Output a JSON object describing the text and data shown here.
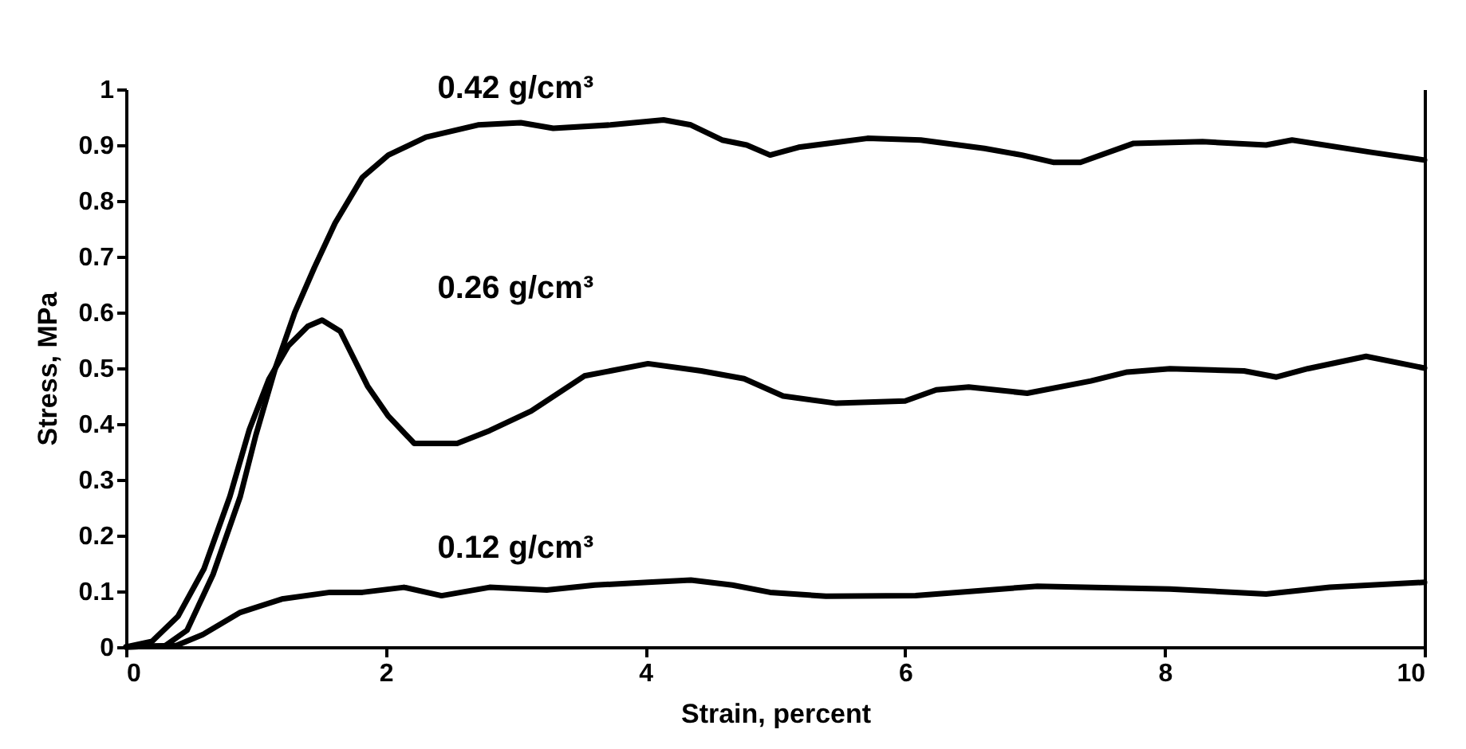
{
  "chart_data": {
    "type": "line",
    "xlabel": "Strain, percent",
    "ylabel": "Stress, MPa",
    "xlim": [
      0,
      10
    ],
    "xticks": [
      0,
      2,
      4,
      6,
      8,
      10
    ],
    "ylim": [
      0,
      1
    ],
    "yticks": [
      0,
      0.1,
      0.2,
      0.3,
      0.4,
      0.5,
      0.6,
      0.7,
      0.8,
      0.9,
      1
    ],
    "grid": false,
    "legend": false,
    "series": [
      {
        "name": "0.42 g/cm³",
        "color": "#000000",
        "x": [
          0,
          0.3,
          0.47,
          0.67,
          0.88,
          1.0,
          1.15,
          1.3,
          1.45,
          1.61,
          1.82,
          2.02,
          2.31,
          2.71,
          3.04,
          3.29,
          3.73,
          4.14,
          4.35,
          4.59,
          4.78,
          4.96,
          5.18,
          5.71,
          6.12,
          6.61,
          6.9,
          7.14,
          7.35,
          7.76,
          8.29,
          8.78,
          8.98,
          9.59,
          10
        ],
        "values": [
          0,
          0.002,
          0.03,
          0.13,
          0.27,
          0.38,
          0.5,
          0.6,
          0.68,
          0.76,
          0.842,
          0.882,
          0.914,
          0.936,
          0.94,
          0.93,
          0.936,
          0.945,
          0.936,
          0.909,
          0.9,
          0.882,
          0.896,
          0.912,
          0.909,
          0.894,
          0.882,
          0.869,
          0.869,
          0.903,
          0.906,
          0.9,
          0.909,
          0.887,
          0.873
        ]
      },
      {
        "name": "0.26 g/cm³",
        "color": "#000000",
        "x": [
          0,
          0.2,
          0.4,
          0.6,
          0.8,
          0.95,
          1.1,
          1.25,
          1.4,
          1.51,
          1.65,
          1.86,
          2.02,
          2.22,
          2.55,
          2.8,
          3.12,
          3.53,
          4.02,
          4.43,
          4.76,
          5.06,
          5.47,
          6.0,
          6.24,
          6.49,
          6.94,
          7.43,
          7.71,
          8.04,
          8.61,
          8.86,
          9.1,
          9.55,
          10
        ],
        "values": [
          0,
          0.01,
          0.055,
          0.14,
          0.27,
          0.39,
          0.48,
          0.54,
          0.575,
          0.586,
          0.566,
          0.468,
          0.414,
          0.365,
          0.365,
          0.388,
          0.423,
          0.486,
          0.508,
          0.495,
          0.481,
          0.45,
          0.437,
          0.441,
          0.461,
          0.466,
          0.455,
          0.477,
          0.493,
          0.499,
          0.495,
          0.484,
          0.499,
          0.521,
          0.5
        ]
      },
      {
        "name": "0.12 g/cm³",
        "color": "#000000",
        "x": [
          0,
          0.39,
          0.59,
          0.88,
          1.2,
          1.57,
          1.82,
          2.14,
          2.43,
          2.8,
          3.24,
          3.61,
          4.02,
          4.35,
          4.67,
          4.96,
          5.39,
          6.08,
          7.02,
          8.04,
          8.78,
          9.27,
          10
        ],
        "values": [
          0,
          0.003,
          0.022,
          0.062,
          0.086,
          0.098,
          0.098,
          0.107,
          0.092,
          0.107,
          0.102,
          0.111,
          0.116,
          0.12,
          0.111,
          0.098,
          0.091,
          0.092,
          0.109,
          0.104,
          0.095,
          0.107,
          0.116
        ]
      }
    ]
  }
}
